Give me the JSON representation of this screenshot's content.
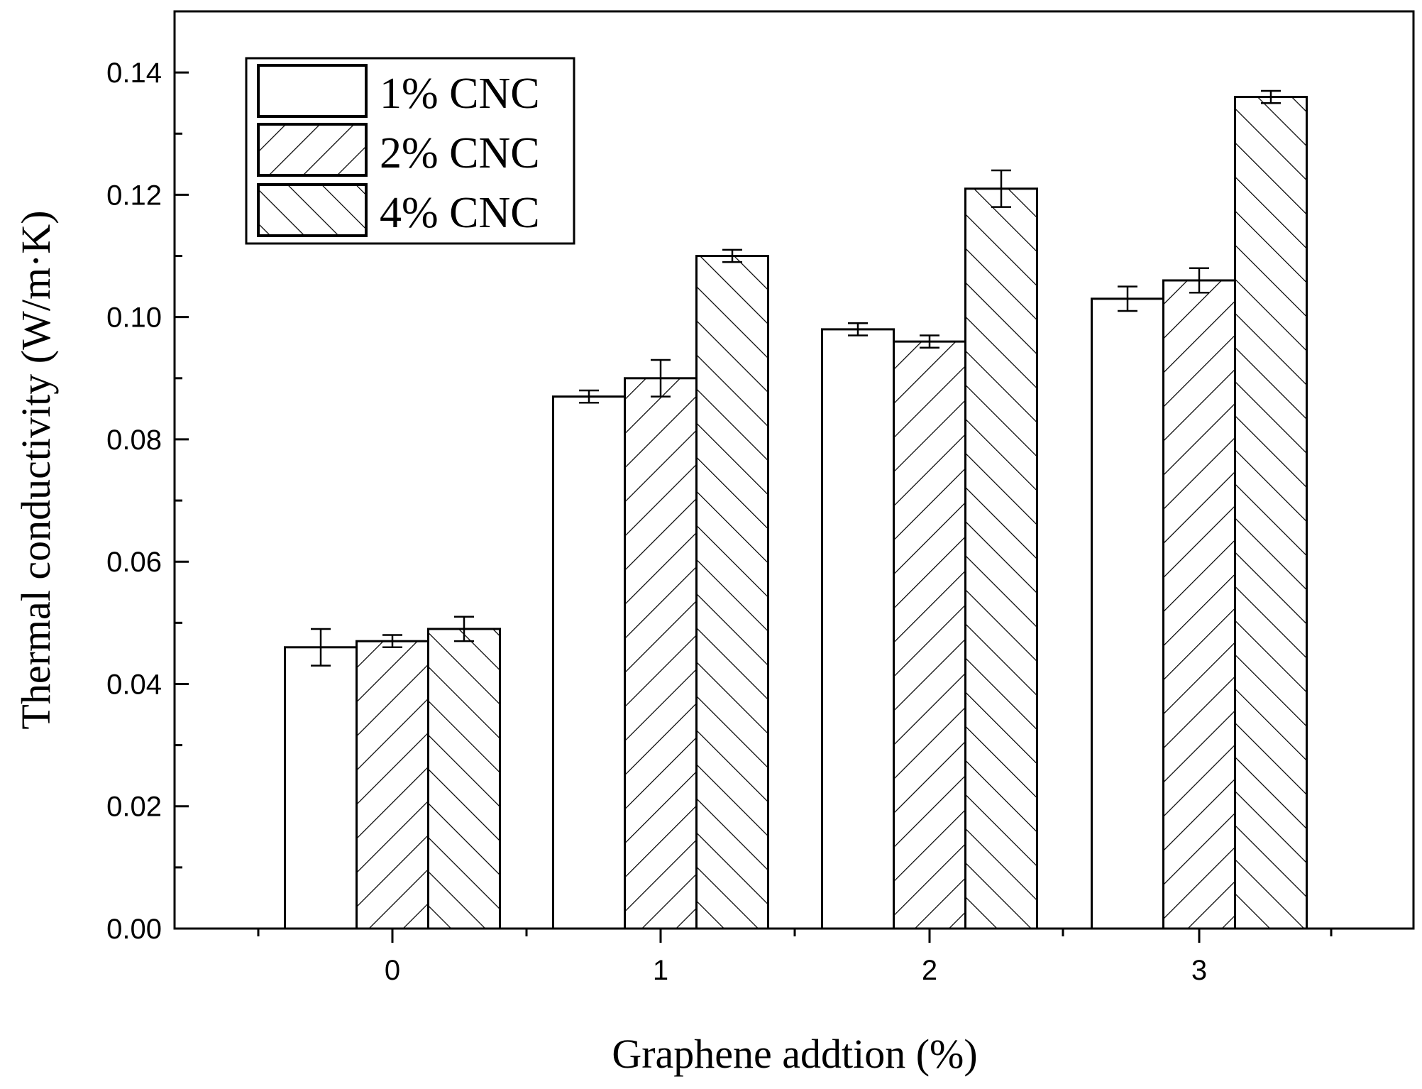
{
  "chart_data": {
    "type": "bar",
    "title": "",
    "xlabel": "Graphene addtion (%)",
    "ylabel": "Thermal conductivity (W/m·K)",
    "categories": [
      "0",
      "1",
      "2",
      "3"
    ],
    "ylim": [
      0,
      0.15
    ],
    "yticks": [
      "0.00",
      "0.02",
      "0.04",
      "0.06",
      "0.08",
      "0.10",
      "0.12",
      "0.14"
    ],
    "grid": false,
    "legend_position": "top-left",
    "series": [
      {
        "name": "1% CNC",
        "pattern": "none",
        "values": [
          0.046,
          0.087,
          0.098,
          0.103
        ],
        "errors": [
          0.003,
          0.001,
          0.001,
          0.002
        ]
      },
      {
        "name": "2% CNC",
        "pattern": "forward-diagonal",
        "values": [
          0.047,
          0.09,
          0.096,
          0.106
        ],
        "errors": [
          0.001,
          0.003,
          0.001,
          0.002
        ]
      },
      {
        "name": "4% CNC",
        "pattern": "back-diagonal",
        "values": [
          0.049,
          0.11,
          0.121,
          0.136
        ],
        "errors": [
          0.002,
          0.001,
          0.003,
          0.001
        ]
      }
    ]
  }
}
